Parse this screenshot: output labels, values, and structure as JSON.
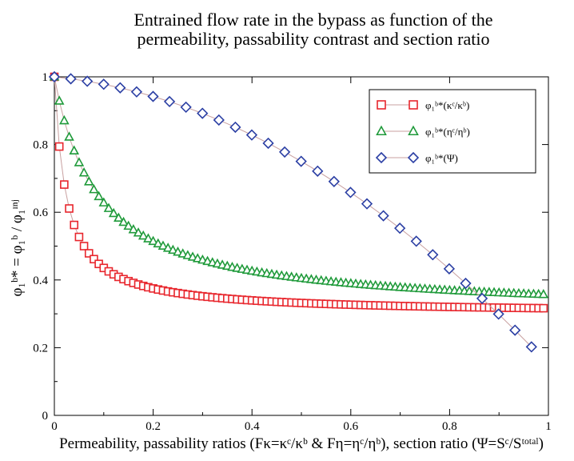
{
  "chart_data": {
    "type": "scatter",
    "title_lines": [
      "Entrained flow rate in the bypass as function of the",
      "permeability, passability contrast and section ratio"
    ],
    "xlabel": "Permeability, passability ratios (Fκ=κᶜ/κᵇ & Fη=ηᶜ/ηᵇ), section ratio (Ψ=Sᶜ/Sᵗᵒᵗᵃˡ)",
    "ylabel": "φ₁ᵇ* = φ₁ᵇ / φ₁ᶦⁿʲ",
    "xlim": [
      0,
      1
    ],
    "ylim": [
      0,
      1
    ],
    "x_ticks": [
      "0",
      "0.2",
      "0.4",
      "0.6",
      "0.8",
      "1"
    ],
    "y_ticks": [
      "0",
      "0.2",
      "0.4",
      "0.6",
      "0.8",
      "1"
    ],
    "grid": false,
    "legend_position": "top-right",
    "series": [
      {
        "name": "φ₁ᵇ*(κᶜ/κᵇ)",
        "marker": "square",
        "color": "#e8262d",
        "x_start": 0.0,
        "x_step": 0.01,
        "count": 100,
        "model": "rational",
        "a": 0.024,
        "b": 0.97,
        "c": 0.035,
        "d": 1.0
      },
      {
        "name": "φ₁ᵇ*(ηᶜ/ηᵇ)",
        "marker": "triangle",
        "color": "#1f9a3a",
        "x_start": 0.0,
        "x_step": 0.01,
        "count": 100,
        "model": "rational",
        "a": 0.15,
        "b": 0.95,
        "c": 0.15,
        "d": 1.7
      },
      {
        "name": "φ₁ᵇ*(Ψ)",
        "marker": "diamond",
        "color": "#2b3fa4",
        "x_start": 0.0,
        "x_step": 0.0333,
        "count": 30,
        "model": "poly",
        "coef": [
          1.0,
          -0.15,
          -0.7
        ]
      }
    ]
  }
}
